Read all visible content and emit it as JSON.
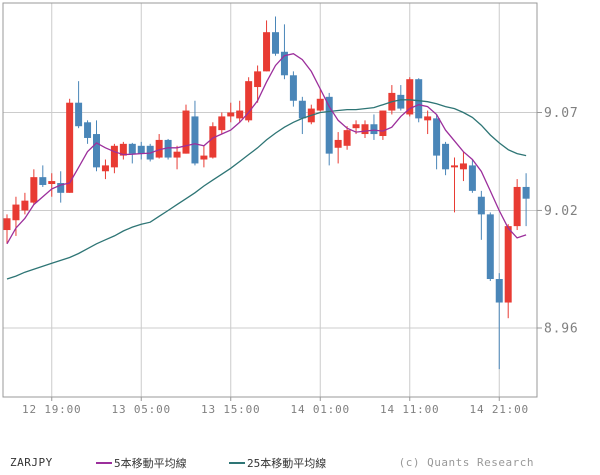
{
  "legend": {
    "symbol": "ZARJPY",
    "ma5_label": "5本移動平均線",
    "ma25_label": "25本移動平均線",
    "copyright": "(c) Quants Research"
  },
  "colors": {
    "up_candle": "#e83b33",
    "down_candle": "#4a86b8",
    "ma5_line": "#9c2f9c",
    "ma25_line": "#2e7575",
    "grid": "#cccccc",
    "axis_border": "#999999",
    "axis_text": "#808080",
    "legend_text": "#333333",
    "copyright_text": "#999999",
    "background": "#ffffff"
  },
  "chart_data": {
    "type": "candlestick",
    "title": "",
    "symbol": "ZARJPY",
    "interval_hint": "1-hour candles",
    "legend_position": "bottom",
    "grid": true,
    "y_axis": {
      "side": "right",
      "ticks": [
        9.07,
        9.02,
        8.96
      ],
      "range_approx": [
        8.93,
        9.125
      ]
    },
    "x_axis": {
      "tick_labels": [
        "12 19:00",
        "13 05:00",
        "13 15:00",
        "14 01:00",
        "14 11:00",
        "14 21:00"
      ],
      "tick_candle_indices": [
        5,
        15,
        25,
        35,
        45,
        55
      ]
    },
    "candles": [
      [
        9.01,
        9.018,
        9.003,
        9.016
      ],
      [
        9.015,
        9.027,
        9.007,
        9.023
      ],
      [
        9.02,
        9.029,
        9.018,
        9.025
      ],
      [
        9.024,
        9.041,
        9.023,
        9.037
      ],
      [
        9.037,
        9.043,
        9.032,
        9.033
      ],
      [
        9.0335,
        9.039,
        9.027,
        9.035
      ],
      [
        9.034,
        9.04,
        9.024,
        9.029
      ],
      [
        9.029,
        9.077,
        9.029,
        9.075
      ],
      [
        9.075,
        9.086,
        9.062,
        9.063
      ],
      [
        9.065,
        9.066,
        9.054,
        9.057
      ],
      [
        9.059,
        9.066,
        9.04,
        9.042
      ],
      [
        9.04,
        9.046,
        9.036,
        9.043
      ],
      [
        9.042,
        9.054,
        9.039,
        9.053
      ],
      [
        9.048,
        9.055,
        9.046,
        9.054
      ],
      [
        9.054,
        9.0545,
        9.044,
        9.049
      ],
      [
        9.053,
        9.055,
        9.046,
        9.049
      ],
      [
        9.053,
        9.054,
        9.045,
        9.046
      ],
      [
        9.047,
        9.059,
        9.0465,
        9.056
      ],
      [
        9.056,
        9.0565,
        9.046,
        9.047
      ],
      [
        9.047,
        9.053,
        9.041,
        9.05
      ],
      [
        9.049,
        9.074,
        9.049,
        9.071
      ],
      [
        9.068,
        9.076,
        9.043,
        9.044
      ],
      [
        9.046,
        9.053,
        9.042,
        9.048
      ],
      [
        9.047,
        9.065,
        9.0465,
        9.063
      ],
      [
        9.061,
        9.07,
        9.059,
        9.068
      ],
      [
        9.068,
        9.075,
        9.065,
        9.07
      ],
      [
        9.067,
        9.076,
        9.065,
        9.071
      ],
      [
        9.066,
        9.088,
        9.065,
        9.086
      ],
      [
        9.083,
        9.094,
        9.075,
        9.091
      ],
      [
        9.091,
        9.117,
        9.091,
        9.111
      ],
      [
        9.111,
        9.119,
        9.099,
        9.1
      ],
      [
        9.101,
        9.115,
        9.087,
        9.089
      ],
      [
        9.089,
        9.091,
        9.073,
        9.076
      ],
      [
        9.076,
        9.078,
        9.059,
        9.067
      ],
      [
        9.065,
        9.074,
        9.064,
        9.072
      ],
      [
        9.071,
        9.082,
        9.0705,
        9.077
      ],
      [
        9.078,
        9.08,
        9.043,
        9.049
      ],
      [
        9.052,
        9.06,
        9.044,
        9.056
      ],
      [
        9.053,
        9.063,
        9.051,
        9.061
      ],
      [
        9.062,
        9.066,
        9.059,
        9.064
      ],
      [
        9.059,
        9.066,
        9.057,
        9.064
      ],
      [
        9.064,
        9.069,
        9.056,
        9.059
      ],
      [
        9.058,
        9.071,
        9.056,
        9.071
      ],
      [
        9.071,
        9.084,
        9.069,
        9.08
      ],
      [
        9.079,
        9.084,
        9.071,
        9.072
      ],
      [
        9.069,
        9.088,
        9.068,
        9.087
      ],
      [
        9.087,
        9.0875,
        9.065,
        9.067
      ],
      [
        9.066,
        9.071,
        9.059,
        9.068
      ],
      [
        9.067,
        9.069,
        9.041,
        9.048
      ],
      [
        9.054,
        9.055,
        9.038,
        9.041
      ],
      [
        9.042,
        9.047,
        9.019,
        9.043
      ],
      [
        9.041,
        9.05,
        9.035,
        9.044
      ],
      [
        9.043,
        9.046,
        9.029,
        9.03
      ],
      [
        9.027,
        9.03,
        9.005,
        9.018
      ],
      [
        9.018,
        9.019,
        8.984,
        8.985
      ],
      [
        8.985,
        8.988,
        8.939,
        8.973
      ],
      [
        8.973,
        9.013,
        8.965,
        9.012
      ],
      [
        9.012,
        9.036,
        9.01,
        9.032
      ],
      [
        9.032,
        9.039,
        9.012,
        9.026
      ]
    ],
    "series": [
      {
        "name": "5本移動平均線",
        "type": "line",
        "color_key": "ma5_line",
        "values": [
          9.003,
          9.011,
          9.016,
          9.023,
          9.027,
          9.031,
          9.033,
          9.034,
          9.042,
          9.05,
          9.0545,
          9.052,
          9.05,
          9.0485,
          9.0487,
          9.049,
          9.0493,
          9.051,
          9.052,
          9.052,
          9.053,
          9.054,
          9.053,
          9.057,
          9.059,
          9.061,
          9.065,
          9.07,
          9.076,
          9.0855,
          9.094,
          9.099,
          9.1,
          9.097,
          9.091,
          9.082,
          9.073,
          9.066,
          9.062,
          9.06,
          9.0605,
          9.061,
          9.0605,
          9.0625,
          9.068,
          9.072,
          9.074,
          9.073,
          9.069,
          9.061,
          9.0555,
          9.05,
          9.046,
          9.04,
          9.03,
          9.02,
          9.011,
          9.006,
          9.0075
        ]
      },
      {
        "name": "25本移動平均線",
        "type": "line",
        "color_key": "ma25_line",
        "values": [
          8.985,
          8.9865,
          8.9885,
          8.99,
          8.9915,
          8.993,
          8.9945,
          8.996,
          8.998,
          9.0005,
          9.003,
          9.005,
          9.007,
          9.0095,
          9.0115,
          9.013,
          9.014,
          9.017,
          9.02,
          9.023,
          9.026,
          9.029,
          9.0325,
          9.0355,
          9.0385,
          9.0415,
          9.045,
          9.0485,
          9.052,
          9.056,
          9.0595,
          9.0625,
          9.065,
          9.067,
          9.0685,
          9.07,
          9.0705,
          9.071,
          9.0715,
          9.0715,
          9.072,
          9.0725,
          9.074,
          9.0755,
          9.0765,
          9.0765,
          9.076,
          9.0755,
          9.0745,
          9.073,
          9.072,
          9.07,
          9.0675,
          9.0635,
          9.0585,
          9.0545,
          9.051,
          9.049,
          9.048
        ]
      }
    ]
  }
}
